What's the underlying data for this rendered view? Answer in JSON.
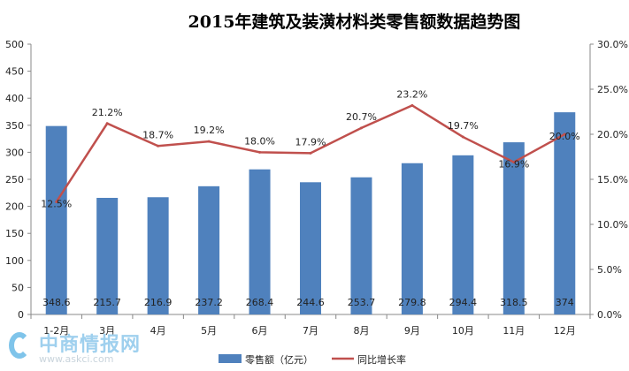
{
  "chart_data": {
    "type": "bar+line",
    "title": "2015年建筑及装潢材料类零售额数据趋势图",
    "categories": [
      "1-2月",
      "3月",
      "4月",
      "5月",
      "6月",
      "7月",
      "8月",
      "9月",
      "10月",
      "11月",
      "12月"
    ],
    "series": [
      {
        "name": "零售额（亿元）",
        "type": "bar",
        "axis": "left",
        "color": "#4f81bd",
        "values": [
          348.6,
          215.7,
          216.9,
          237.2,
          268.4,
          244.6,
          253.7,
          279.8,
          294.4,
          318.5,
          374
        ],
        "labels": [
          "348.6",
          "215.7",
          "216.9",
          "237.2",
          "268.4",
          "244.6",
          "253.7",
          "279.8",
          "294.4",
          "318.5",
          "374"
        ]
      },
      {
        "name": "同比增长率",
        "type": "line",
        "axis": "right",
        "color": "#c0504d",
        "values": [
          12.5,
          21.2,
          18.7,
          19.2,
          18.0,
          17.9,
          20.7,
          23.2,
          19.7,
          16.9,
          20.0
        ],
        "labels": [
          "12.5%",
          "21.2%",
          "18.7%",
          "19.2%",
          "18.0%",
          "17.9%",
          "20.7%",
          "23.2%",
          "19.7%",
          "16.9%",
          "20.0%"
        ]
      }
    ],
    "ylim": [
      0,
      500
    ],
    "yticks": [
      "0",
      "50",
      "100",
      "150",
      "200",
      "250",
      "300",
      "350",
      "400",
      "450",
      "500"
    ],
    "y2lim": [
      0,
      30
    ],
    "y2ticks": [
      "0.0%",
      "5.0%",
      "10.0%",
      "15.0%",
      "20.0%",
      "25.0%",
      "30.0%"
    ],
    "grid": false,
    "legend": "bottom"
  },
  "logo": {
    "name": "中商情报网",
    "url": "www.askci.com"
  }
}
